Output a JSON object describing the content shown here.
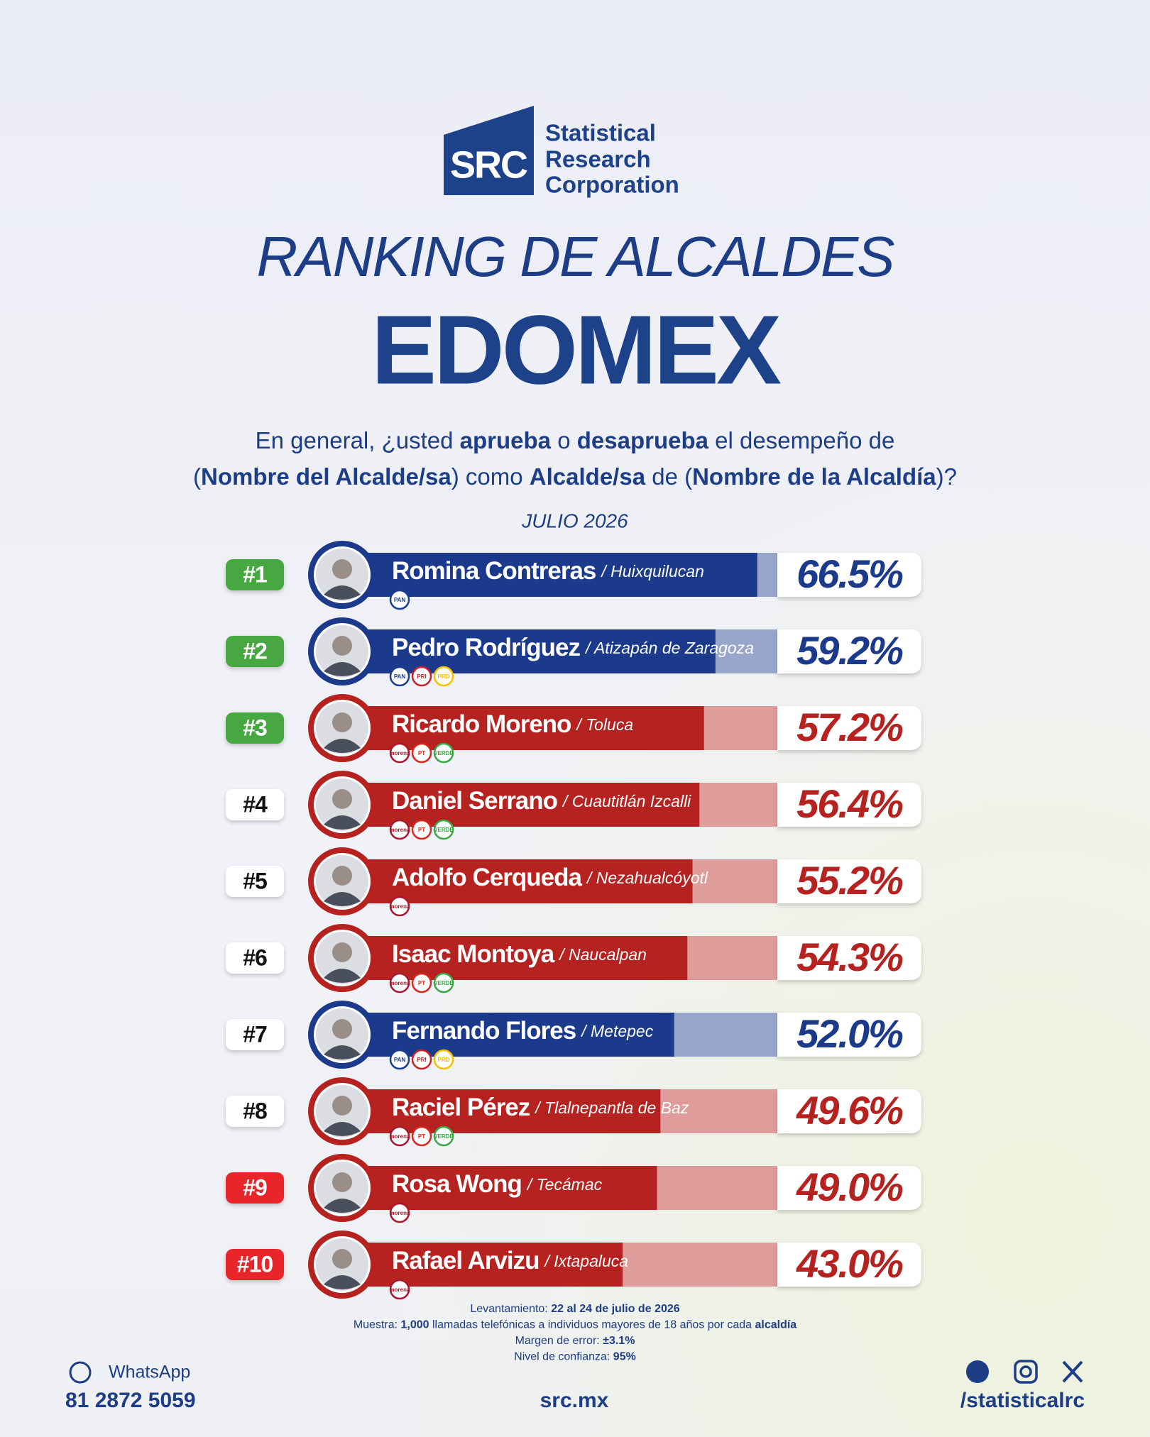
{
  "logo": {
    "mark": "SRC",
    "lines": [
      "Statistical",
      "Research",
      "Corporation"
    ]
  },
  "header": {
    "title": "RANKING DE ALCALDES",
    "region": "EDOMEX",
    "question": [
      [
        {
          "text": "En general, ¿usted ",
          "bold": false
        },
        {
          "text": "aprueba",
          "bold": true
        },
        {
          "text": " o ",
          "bold": false
        },
        {
          "text": "desaprueba",
          "bold": true
        },
        {
          "text": " el desempeño de",
          "bold": false
        }
      ],
      [
        {
          "text": "(",
          "bold": false
        },
        {
          "text": "Nombre del Alcalde/sa",
          "bold": true
        },
        {
          "text": ") como ",
          "bold": false
        },
        {
          "text": "Alcalde/sa",
          "bold": true
        },
        {
          "text": " de (",
          "bold": false
        },
        {
          "text": "Nombre de la Alcaldía",
          "bold": true
        },
        {
          "text": ")?",
          "bold": false
        }
      ]
    ],
    "date": "JULIO 2026"
  },
  "chart_data": {
    "type": "bar",
    "orientation": "horizontal",
    "categories": [
      "Romina Contreras",
      "Pedro Rodríguez",
      "Ricardo Moreno",
      "Daniel Serrano",
      "Adolfo Cerqueda",
      "Isaac Montoya",
      "Fernando Flores",
      "Raciel Pérez",
      "Rosa Wong",
      "Rafael Arvizu"
    ],
    "locations": [
      "/ Huixquilucan",
      "/ Atizapán de Zaragoza",
      "/ Toluca",
      "/ Cuautitlán Izcalli",
      "/ Nezahualcóyotl",
      "/ Naucalpan",
      "/ Metepec",
      "/ Tlalnepantla de Baz",
      "/ Tecámac",
      "/ Ixtapaluca"
    ],
    "ranks": [
      "#1",
      "#2",
      "#3",
      "#4",
      "#5",
      "#6",
      "#7",
      "#8",
      "#9",
      "#10"
    ],
    "rank_colors": [
      "#46a843",
      "#46a843",
      "#46a843",
      "#ffffff",
      "#ffffff",
      "#ffffff",
      "#ffffff",
      "#ffffff",
      "#e8262a",
      "#e8262a"
    ],
    "parties": [
      [
        {
          "label": "PAN",
          "color": "#1a3d8f"
        }
      ],
      [
        {
          "label": "PAN",
          "color": "#1a3d8f"
        },
        {
          "label": "PRI",
          "color": "#c8232b"
        },
        {
          "label": "PRD",
          "color": "#f2c200"
        }
      ],
      [
        {
          "label": "morena",
          "color": "#a6192e"
        },
        {
          "label": "PT",
          "color": "#d7261e"
        },
        {
          "label": "VERDE",
          "color": "#3aa645"
        }
      ],
      [
        {
          "label": "morena",
          "color": "#a6192e"
        },
        {
          "label": "PT",
          "color": "#d7261e"
        },
        {
          "label": "VERDE",
          "color": "#3aa645"
        }
      ],
      [
        {
          "label": "morena",
          "color": "#a6192e"
        }
      ],
      [
        {
          "label": "morena",
          "color": "#a6192e"
        },
        {
          "label": "PT",
          "color": "#d7261e"
        },
        {
          "label": "VERDE",
          "color": "#3aa645"
        }
      ],
      [
        {
          "label": "PAN",
          "color": "#1a3d8f"
        },
        {
          "label": "PRI",
          "color": "#c8232b"
        },
        {
          "label": "PRD",
          "color": "#f2c200"
        }
      ],
      [
        {
          "label": "morena",
          "color": "#a6192e"
        },
        {
          "label": "PT",
          "color": "#d7261e"
        },
        {
          "label": "VERDE",
          "color": "#3aa645"
        }
      ],
      [
        {
          "label": "morena",
          "color": "#a6192e"
        }
      ],
      [
        {
          "label": "morena",
          "color": "#a6192e"
        }
      ]
    ],
    "values": [
      66.5,
      59.2,
      57.2,
      56.4,
      55.2,
      54.3,
      52.0,
      49.6,
      49.0,
      43.0
    ],
    "value_labels": [
      "66.5%",
      "59.2%",
      "57.2%",
      "56.4%",
      "55.2%",
      "54.3%",
      "52.0%",
      "49.6%",
      "49.0%",
      "43.0%"
    ],
    "colors": [
      "#1b3a8c",
      "#1b3a8c",
      "#b5221f",
      "#b5221f",
      "#b5221f",
      "#b5221f",
      "#1b3a8c",
      "#b5221f",
      "#b5221f",
      "#b5221f"
    ],
    "xlim": [
      0,
      70
    ]
  },
  "methodology": [
    [
      {
        "text": "Levantamiento: ",
        "bold": false
      },
      {
        "text": "22 al 24 de julio de 2026",
        "bold": true
      }
    ],
    [
      {
        "text": "Muestra: ",
        "bold": false
      },
      {
        "text": "1,000",
        "bold": true
      },
      {
        "text": " llamadas telefónicas a individuos mayores de 18 años por cada ",
        "bold": false
      },
      {
        "text": "alcaldía",
        "bold": true
      }
    ],
    [
      {
        "text": "Margen de error: ",
        "bold": false
      },
      {
        "text": "±3.1%",
        "bold": true
      }
    ],
    [
      {
        "text": "Nivel de confianza: ",
        "bold": false
      },
      {
        "text": "95%",
        "bold": true
      }
    ]
  ],
  "contact": {
    "whatsapp_label": "WhatsApp",
    "phone": "81 2872 5059",
    "website": "src.mx",
    "social": "/statisticalrc"
  }
}
